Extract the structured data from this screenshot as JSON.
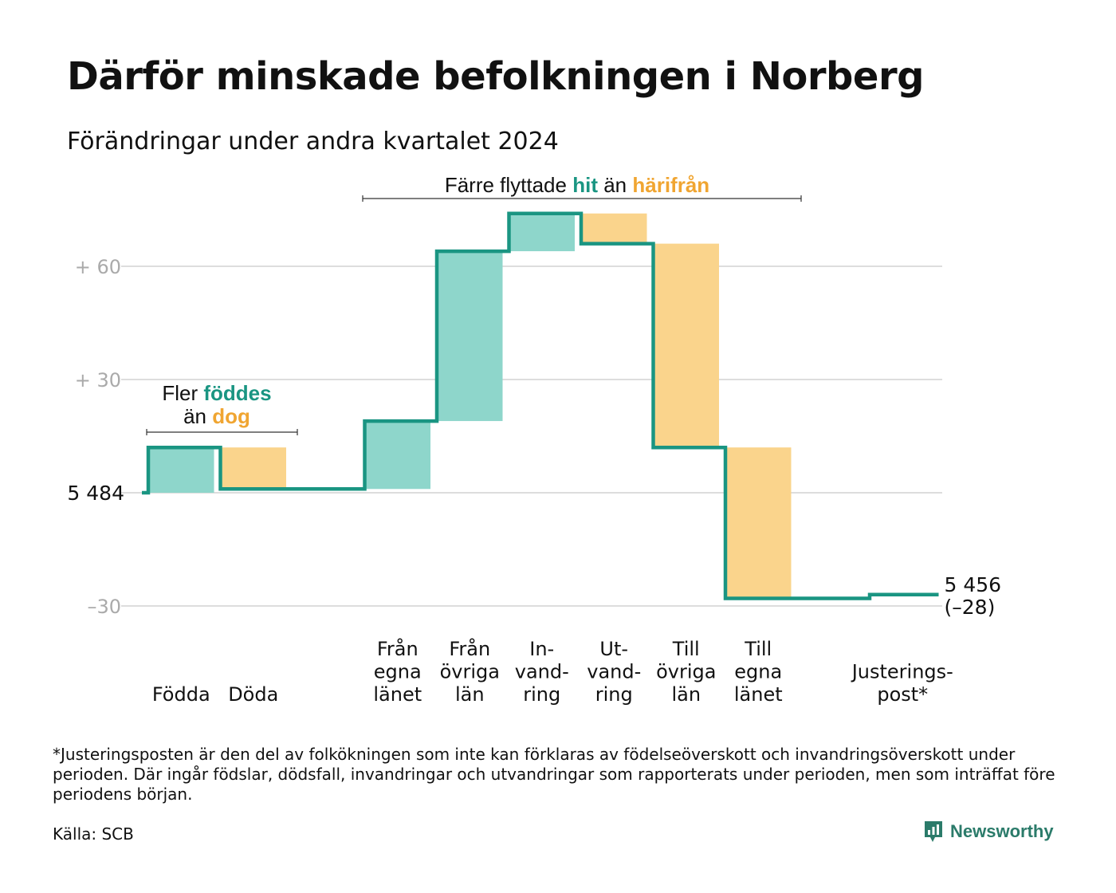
{
  "title": "Därför minskade befolkningen i Norberg",
  "subtitle": "Förändringar under andra kvartalet 2024",
  "footnote": "*Justeringsposten är den del av folkökningen som inte kan förklaras av födelseöverskott och invandringsöverskott under perioden. Där ingår födslar, dödsfall, invandringar och utvandringar som rapporterats under perioden, men som inträffat före periodens början.",
  "source": "Källa: SCB",
  "brand": {
    "name": "Newsworthy",
    "icon": "newsworthy-logo-icon"
  },
  "colors": {
    "gain": "#8ed6cb",
    "loss": "#fad48c",
    "line": "#1a9582",
    "gain_text": "#1a9582",
    "loss_text": "#f0a531",
    "grid": "#dddddd",
    "tick_text": "#aaaaaa"
  },
  "chart_data": {
    "type": "waterfall",
    "start_value": 5484,
    "start_label": "5  484",
    "end_value": 5456,
    "end_label_lines": [
      "5 456",
      "(–28)"
    ],
    "y_unit": "change relative to start",
    "ylim": [
      -30,
      82
    ],
    "y_ticks": [
      {
        "value": 60,
        "label": "+  60"
      },
      {
        "value": 30,
        "label": "+  30"
      },
      {
        "value": 0,
        "label": ""
      },
      {
        "value": -30,
        "label": "–30"
      }
    ],
    "categories": [
      {
        "label_lines": [
          "Födda"
        ],
        "change": 12,
        "kind": "gain"
      },
      {
        "label_lines": [
          "Döda"
        ],
        "change": -11,
        "kind": "loss"
      },
      {
        "label_lines": [],
        "change": 0,
        "kind": "none"
      },
      {
        "label_lines": [
          "Från",
          "egna",
          "länet"
        ],
        "change": 18,
        "kind": "gain"
      },
      {
        "label_lines": [
          "Från",
          "övriga",
          "län"
        ],
        "change": 45,
        "kind": "gain"
      },
      {
        "label_lines": [
          "In-",
          "vand-",
          "ring"
        ],
        "change": 10,
        "kind": "gain"
      },
      {
        "label_lines": [
          "Ut-",
          "vand-",
          "ring"
        ],
        "change": -8,
        "kind": "loss"
      },
      {
        "label_lines": [
          "Till",
          "övriga",
          "län"
        ],
        "change": -54,
        "kind": "loss"
      },
      {
        "label_lines": [
          "Till",
          "egna",
          "länet"
        ],
        "change": -40,
        "kind": "loss"
      },
      {
        "label_lines": [],
        "change": 0,
        "kind": "none"
      },
      {
        "label_lines": [
          "Justerings-",
          "post*"
        ],
        "change": 1,
        "kind": "gain"
      }
    ],
    "annotations": [
      {
        "lines": [
          [
            {
              "text": "Fler ",
              "style": "plain"
            },
            {
              "text": "föddes",
              "style": "gain"
            }
          ],
          [
            {
              "text": "än ",
              "style": "plain"
            },
            {
              "text": "dog",
              "style": "loss"
            }
          ]
        ],
        "from_category": 0,
        "to_category": 1
      },
      {
        "lines": [
          [
            {
              "text": "Färre flyttade ",
              "style": "plain"
            },
            {
              "text": "hit",
              "style": "gain"
            },
            {
              "text": "  än ",
              "style": "plain"
            },
            {
              "text": "härifrån",
              "style": "loss"
            }
          ]
        ],
        "from_category": 3,
        "to_category": 8
      }
    ]
  }
}
